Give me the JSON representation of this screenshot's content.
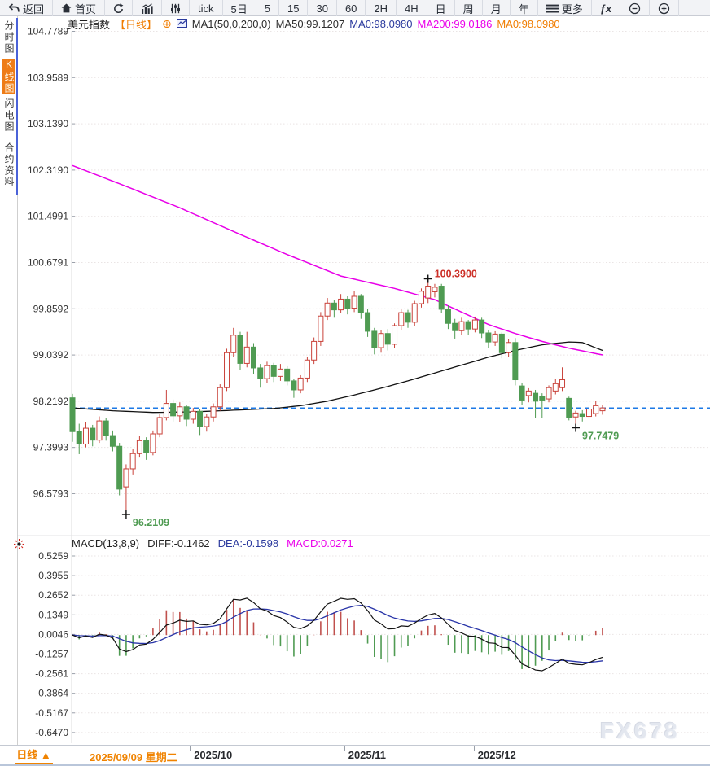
{
  "window": {
    "watermark": "FX678"
  },
  "toolbar": {
    "items": [
      {
        "name": "back",
        "icon": "back",
        "label": "返回"
      },
      {
        "name": "home",
        "icon": "home",
        "label": "首页"
      },
      {
        "name": "refresh",
        "icon": "refresh",
        "label": ""
      },
      {
        "name": "chart-style-bars",
        "icon": "bars",
        "label": ""
      },
      {
        "name": "chart-style-sliders",
        "icon": "sliders",
        "label": ""
      },
      {
        "name": "interval-tick",
        "icon": "",
        "label": "tick"
      },
      {
        "name": "interval-5d",
        "icon": "",
        "label": "5日"
      },
      {
        "name": "interval-5",
        "icon": "",
        "label": "5"
      },
      {
        "name": "interval-15",
        "icon": "",
        "label": "15"
      },
      {
        "name": "interval-30",
        "icon": "",
        "label": "30"
      },
      {
        "name": "interval-60",
        "icon": "",
        "label": "60"
      },
      {
        "name": "interval-2h",
        "icon": "",
        "label": "2H"
      },
      {
        "name": "interval-4h",
        "icon": "",
        "label": "4H"
      },
      {
        "name": "interval-day",
        "icon": "",
        "label": "日"
      },
      {
        "name": "interval-week",
        "icon": "",
        "label": "周"
      },
      {
        "name": "interval-month",
        "icon": "",
        "label": "月"
      },
      {
        "name": "interval-year",
        "icon": "",
        "label": "年"
      },
      {
        "name": "more",
        "icon": "menu",
        "label": "更多"
      },
      {
        "name": "indicators-fx",
        "icon": "fx",
        "label": ""
      },
      {
        "name": "zoom-out",
        "icon": "zoomout",
        "label": ""
      },
      {
        "name": "zoom-in",
        "icon": "zoomin",
        "label": ""
      }
    ]
  },
  "sidebar": {
    "items": [
      {
        "name": "time-share-chart",
        "label": "分时图",
        "selected": false
      },
      {
        "name": "kline-chart",
        "label": "K线图",
        "selected": true
      },
      {
        "name": "lightning-chart",
        "label": "闪电图",
        "selected": false
      },
      {
        "name": "contract-info",
        "label": "合约资料",
        "selected": false
      }
    ]
  },
  "chart_header": {
    "symbol": "美元指数",
    "period": "【日线】",
    "ma_settings": "MA1(50,0,200,0)",
    "ma50": "MA50:99.1207",
    "ma0_blue": "MA0:98.0980",
    "ma200": "MA200:99.0186",
    "ma0_orange": "MA0:98.0980"
  },
  "macd_header": {
    "label": "MACD(13,8,9)",
    "diff": "DIFF:-0.1462",
    "dea": "DEA:-0.1598",
    "macd": "MACD:0.0271"
  },
  "bottom_bar": {
    "period": "日线",
    "arrow": "▲",
    "selected_date": "2025/09/09 星期二"
  },
  "colors": {
    "up_candle": "#c9423a",
    "down_candle": "#4f9b52",
    "ma200_line": "#e800e8",
    "ma50_line": "#111111",
    "price_dash_line": "#1c79e6",
    "diff_line": "#111111",
    "dea_line": "#2834a8",
    "macd_bar_pos": "#c0504d",
    "macd_bar_neg": "#4f9b52",
    "high_label": "#cc3028",
    "low_label": "#4f9b52",
    "accent_orange": "#f07d00",
    "grid": "#eae4e4"
  },
  "chart_data": {
    "type": "candlestick+macd",
    "title": "美元指数 日线 (US Dollar Index, Daily)",
    "start_date": "2025/09/09",
    "price_line_value": 98.098,
    "y_ticks": [
      "104.7789",
      "103.9589",
      "103.1390",
      "102.3190",
      "101.4991",
      "100.6791",
      "99.8592",
      "99.0392",
      "98.2192",
      "97.3993",
      "96.5793"
    ],
    "y_range": [
      96.5793,
      104.7789
    ],
    "x_ticks": [
      {
        "day": 17.5,
        "label": "2025/10"
      },
      {
        "day": 40.5,
        "label": "2025/11"
      },
      {
        "day": 59.8,
        "label": "2025/12"
      }
    ],
    "annotations": [
      {
        "text": "100.3900",
        "day": 53,
        "value": 100.39,
        "placement": "high"
      },
      {
        "text": "96.2109",
        "day": 8,
        "value": 96.2109,
        "placement": "low"
      },
      {
        "text": "97.7479",
        "day": 75,
        "value": 97.7479,
        "placement": "low"
      }
    ],
    "candles_format": [
      "open",
      "high",
      "low",
      "close"
    ],
    "candles": [
      [
        98.28,
        98.35,
        97.5,
        97.68
      ],
      [
        97.68,
        97.82,
        97.28,
        97.46
      ],
      [
        97.46,
        97.85,
        97.4,
        97.74
      ],
      [
        97.74,
        97.8,
        97.42,
        97.53
      ],
      [
        97.53,
        97.95,
        97.48,
        97.87
      ],
      [
        97.87,
        97.92,
        97.52,
        97.61
      ],
      [
        97.61,
        97.7,
        97.33,
        97.42
      ],
      [
        97.42,
        97.48,
        96.55,
        96.66
      ],
      [
        96.7,
        97.1,
        96.2109,
        97.02
      ],
      [
        97.02,
        97.38,
        96.92,
        97.29
      ],
      [
        97.29,
        97.6,
        97.22,
        97.52
      ],
      [
        97.52,
        97.58,
        97.18,
        97.31
      ],
      [
        97.31,
        97.7,
        97.26,
        97.64
      ],
      [
        97.64,
        98.0,
        97.58,
        97.93
      ],
      [
        97.93,
        98.42,
        97.88,
        98.18
      ],
      [
        98.18,
        98.25,
        97.86,
        97.96
      ],
      [
        97.96,
        98.2,
        97.85,
        98.12
      ],
      [
        98.12,
        98.16,
        97.78,
        97.9
      ],
      [
        97.9,
        98.1,
        97.82,
        98.04
      ],
      [
        98.04,
        98.08,
        97.62,
        97.77
      ],
      [
        97.77,
        98.0,
        97.68,
        97.94
      ],
      [
        97.94,
        98.18,
        97.86,
        98.12
      ],
      [
        98.12,
        98.52,
        98.05,
        98.46
      ],
      [
        98.46,
        99.15,
        98.4,
        99.08
      ],
      [
        99.08,
        99.52,
        99.0,
        99.39
      ],
      [
        99.39,
        99.45,
        98.78,
        98.89
      ],
      [
        98.89,
        99.45,
        98.82,
        99.18
      ],
      [
        99.18,
        99.25,
        98.7,
        98.81
      ],
      [
        98.81,
        98.88,
        98.46,
        98.62
      ],
      [
        98.62,
        98.92,
        98.54,
        98.85
      ],
      [
        98.85,
        98.9,
        98.56,
        98.66
      ],
      [
        98.66,
        98.88,
        98.58,
        98.79
      ],
      [
        98.79,
        98.84,
        98.5,
        98.58
      ],
      [
        98.58,
        98.62,
        98.28,
        98.42
      ],
      [
        98.42,
        98.68,
        98.36,
        98.63
      ],
      [
        98.63,
        99.0,
        98.56,
        98.95
      ],
      [
        98.95,
        99.35,
        98.88,
        99.28
      ],
      [
        99.28,
        99.8,
        99.2,
        99.73
      ],
      [
        99.73,
        100.05,
        99.66,
        99.96
      ],
      [
        99.96,
        100.02,
        99.7,
        99.84
      ],
      [
        99.84,
        100.12,
        99.78,
        100.03
      ],
      [
        100.03,
        100.08,
        99.76,
        99.87
      ],
      [
        99.87,
        100.18,
        99.8,
        100.08
      ],
      [
        100.08,
        100.12,
        99.68,
        99.79
      ],
      [
        99.79,
        99.85,
        99.36,
        99.46
      ],
      [
        99.46,
        99.52,
        99.05,
        99.17
      ],
      [
        99.17,
        99.48,
        99.08,
        99.42
      ],
      [
        99.42,
        99.5,
        99.12,
        99.23
      ],
      [
        99.23,
        99.6,
        99.16,
        99.56
      ],
      [
        99.56,
        99.85,
        99.48,
        99.79
      ],
      [
        99.79,
        99.84,
        99.52,
        99.62
      ],
      [
        99.62,
        100.0,
        99.56,
        99.95
      ],
      [
        99.95,
        100.22,
        99.88,
        100.17
      ],
      [
        100.05,
        100.39,
        99.96,
        100.26
      ],
      [
        100.16,
        100.3,
        100.06,
        100.24
      ],
      [
        100.26,
        100.3,
        99.78,
        99.85
      ],
      [
        99.85,
        99.92,
        99.5,
        99.6
      ],
      [
        99.6,
        99.68,
        99.33,
        99.47
      ],
      [
        99.47,
        99.7,
        99.4,
        99.63
      ],
      [
        99.63,
        99.66,
        99.4,
        99.5
      ],
      [
        99.5,
        99.72,
        99.44,
        99.66
      ],
      [
        99.66,
        99.7,
        99.34,
        99.43
      ],
      [
        99.43,
        99.48,
        99.16,
        99.27
      ],
      [
        99.27,
        99.46,
        99.2,
        99.41
      ],
      [
        99.41,
        99.44,
        98.98,
        99.08
      ],
      [
        99.08,
        99.32,
        99.0,
        99.26
      ],
      [
        99.26,
        99.34,
        98.5,
        98.6
      ],
      [
        98.49,
        98.55,
        98.16,
        98.24
      ],
      [
        98.32,
        98.45,
        98.2,
        98.4
      ],
      [
        98.36,
        98.42,
        97.92,
        98.22
      ],
      [
        98.3,
        98.36,
        97.92,
        98.24
      ],
      [
        98.26,
        98.5,
        98.2,
        98.46
      ],
      [
        98.4,
        98.62,
        98.34,
        98.53
      ],
      [
        98.46,
        98.82,
        98.4,
        98.6
      ],
      [
        98.27,
        98.3,
        97.88,
        97.93
      ],
      [
        97.94,
        98.05,
        97.7479,
        98.01
      ],
      [
        98.0,
        98.06,
        97.86,
        97.95
      ],
      [
        97.95,
        98.15,
        97.9,
        98.08
      ],
      [
        98.0,
        98.22,
        97.95,
        98.14
      ],
      [
        98.05,
        98.16,
        97.98,
        98.1
      ]
    ],
    "ma50_points": [
      [
        0,
        98.1
      ],
      [
        6,
        98.05
      ],
      [
        12,
        98.02
      ],
      [
        18,
        98.03
      ],
      [
        24,
        98.06
      ],
      [
        30,
        98.09
      ],
      [
        34,
        98.14
      ],
      [
        38,
        98.22
      ],
      [
        42,
        98.33
      ],
      [
        46,
        98.45
      ],
      [
        50,
        98.58
      ],
      [
        54,
        98.72
      ],
      [
        58,
        98.86
      ],
      [
        62,
        99.0
      ],
      [
        66,
        99.12
      ],
      [
        70,
        99.22
      ],
      [
        74,
        99.27
      ],
      [
        76,
        99.26
      ],
      [
        79,
        99.12
      ]
    ],
    "ma200_points": [
      [
        0,
        102.4
      ],
      [
        8,
        102.03
      ],
      [
        16,
        101.65
      ],
      [
        24,
        101.23
      ],
      [
        32,
        100.82
      ],
      [
        40,
        100.44
      ],
      [
        48,
        100.22
      ],
      [
        54,
        100.02
      ],
      [
        58,
        99.8
      ],
      [
        62,
        99.58
      ],
      [
        66,
        99.42
      ],
      [
        70,
        99.28
      ],
      [
        74,
        99.16
      ],
      [
        79,
        99.04
      ]
    ],
    "macd": {
      "params": [
        13,
        8,
        9
      ],
      "y_ticks": [
        "0.5259",
        "0.3955",
        "0.2652",
        "0.1349",
        "0.0046",
        "-0.1257",
        "-0.2561",
        "-0.3864",
        "-0.5167",
        "-0.6470"
      ],
      "current_diff": -0.1462,
      "current_dea": -0.1598,
      "current_macd": 0.0271
    }
  }
}
